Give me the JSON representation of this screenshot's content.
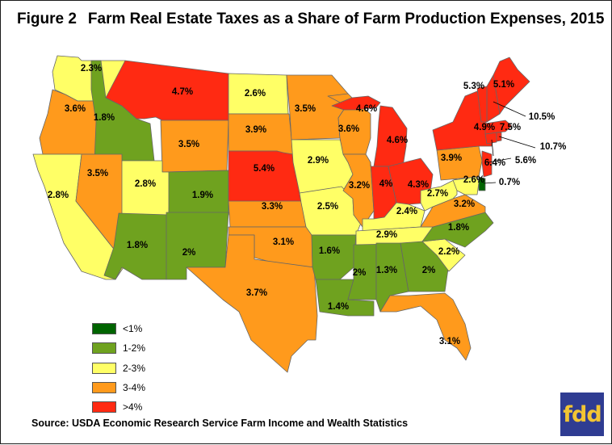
{
  "title": {
    "figure_number": "Figure 2",
    "text": "Farm Real Estate Taxes as a Share of Farm Production Expenses, 2015"
  },
  "legend": {
    "items": [
      {
        "key": "lt1",
        "label": "<1%",
        "color": "#006400"
      },
      {
        "key": "1to2",
        "label": "1-2%",
        "color": "#6fa21f"
      },
      {
        "key": "2to3",
        "label": "2-3%",
        "color": "#ffff66"
      },
      {
        "key": "3to4",
        "label": "3-4%",
        "color": "#ff9a1c"
      },
      {
        "key": "gt4",
        "label": ">4%",
        "color": "#ff2a12"
      }
    ]
  },
  "states": [
    {
      "state": "WA",
      "value": "2.3%",
      "class": "2to3"
    },
    {
      "state": "OR",
      "value": "3.6%",
      "class": "3to4"
    },
    {
      "state": "CA",
      "value": "2.8%",
      "class": "2to3"
    },
    {
      "state": "ID",
      "value": "1.8%",
      "class": "1to2"
    },
    {
      "state": "NV",
      "value": "3.5%",
      "class": "3to4"
    },
    {
      "state": "MT",
      "value": "4.7%",
      "class": "gt4"
    },
    {
      "state": "WY",
      "value": "3.5%",
      "class": "3to4"
    },
    {
      "state": "UT",
      "value": "2.8%",
      "class": "2to3"
    },
    {
      "state": "AZ",
      "value": "1.8%",
      "class": "1to2"
    },
    {
      "state": "CO",
      "value": "1.9%",
      "class": "1to2"
    },
    {
      "state": "NM",
      "value": "2%",
      "class": "1to2"
    },
    {
      "state": "ND",
      "value": "2.6%",
      "class": "2to3"
    },
    {
      "state": "SD",
      "value": "3.9%",
      "class": "3to4"
    },
    {
      "state": "NE",
      "value": "5.4%",
      "class": "gt4"
    },
    {
      "state": "KS",
      "value": "3.3%",
      "class": "3to4"
    },
    {
      "state": "OK",
      "value": "3.1%",
      "class": "3to4"
    },
    {
      "state": "TX",
      "value": "3.7%",
      "class": "3to4"
    },
    {
      "state": "MN",
      "value": "3.5%",
      "class": "3to4"
    },
    {
      "state": "IA",
      "value": "2.9%",
      "class": "2to3"
    },
    {
      "state": "MO",
      "value": "2.5%",
      "class": "2to3"
    },
    {
      "state": "AR",
      "value": "1.6%",
      "class": "1to2"
    },
    {
      "state": "LA",
      "value": "1.4%",
      "class": "1to2"
    },
    {
      "state": "WI",
      "value": "3.6%",
      "class": "3to4"
    },
    {
      "state": "IL",
      "value": "3.2%",
      "class": "3to4"
    },
    {
      "state": "MS",
      "value": "2%",
      "class": "1to2"
    },
    {
      "state": "MI",
      "value": "4.6%",
      "class": "gt4"
    },
    {
      "state": "MI-UP",
      "value": "4.6%",
      "class": "gt4"
    },
    {
      "state": "IN",
      "value": "4%",
      "class": "gt4"
    },
    {
      "state": "OH",
      "value": "4.3%",
      "class": "gt4"
    },
    {
      "state": "KY",
      "value": "2.4%",
      "class": "2to3"
    },
    {
      "state": "TN",
      "value": "2.9%",
      "class": "2to3"
    },
    {
      "state": "AL",
      "value": "1.3%",
      "class": "1to2"
    },
    {
      "state": "GA",
      "value": "2%",
      "class": "1to2"
    },
    {
      "state": "FL",
      "value": "3.1%",
      "class": "3to4"
    },
    {
      "state": "SC",
      "value": "2.2%",
      "class": "2to3"
    },
    {
      "state": "NC",
      "value": "1.8%",
      "class": "1to2"
    },
    {
      "state": "VA",
      "value": "3.2%",
      "class": "3to4"
    },
    {
      "state": "WV",
      "value": "2.7%",
      "class": "2to3"
    },
    {
      "state": "PA",
      "value": "3.9%",
      "class": "3to4"
    },
    {
      "state": "MD",
      "value": "2.6%",
      "class": "2to3"
    },
    {
      "state": "DE",
      "value": "0.7%",
      "class": "lt1"
    },
    {
      "state": "NJ",
      "value": "5.6%",
      "class": "gt4"
    },
    {
      "state": "NY",
      "value": "4.9%",
      "class": "gt4"
    },
    {
      "state": "CT",
      "value": "6.4%",
      "class": "gt4"
    },
    {
      "state": "RI",
      "value": "10.7%",
      "class": "gt4"
    },
    {
      "state": "MA",
      "value": "7.5%",
      "class": "gt4"
    },
    {
      "state": "NH",
      "value": "10.5%",
      "class": "gt4"
    },
    {
      "state": "VT",
      "value": "5.3%",
      "class": "gt4"
    },
    {
      "state": "ME",
      "value": "5.1%",
      "class": "gt4"
    }
  ],
  "source": "Source: USDA Economic Research Service Farm Income and Wealth Statistics",
  "logo_text": "fdd"
}
